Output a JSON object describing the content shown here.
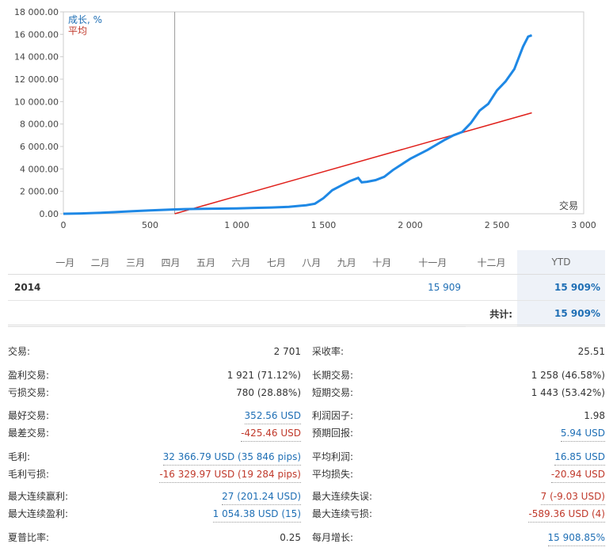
{
  "chart_data": {
    "type": "line",
    "xlabel": "交易",
    "xlim": [
      0,
      3000
    ],
    "ylim": [
      0,
      18000
    ],
    "xticks": [
      "0",
      "500",
      "1 000",
      "1 500",
      "2 000",
      "2 500",
      "3 000"
    ],
    "yticks": [
      "0.00",
      "2 000.00",
      "4 000.00",
      "6 000.00",
      "8 000.00",
      "10 000.00",
      "12 000.00",
      "14 000.00",
      "16 000.00",
      "18 000.00"
    ],
    "vline_x": 642,
    "legend": "top-left",
    "series": [
      {
        "name": "成长, %",
        "color": "#1e88e5",
        "x": [
          0,
          100,
          200,
          300,
          400,
          500,
          600,
          642,
          700,
          800,
          900,
          1000,
          1100,
          1200,
          1300,
          1400,
          1450,
          1500,
          1550,
          1600,
          1650,
          1700,
          1720,
          1750,
          1800,
          1850,
          1900,
          2000,
          2100,
          2200,
          2250,
          2300,
          2350,
          2400,
          2450,
          2500,
          2550,
          2600,
          2650,
          2680,
          2701
        ],
        "y": [
          0,
          30,
          80,
          150,
          230,
          300,
          360,
          390,
          420,
          440,
          460,
          480,
          520,
          560,
          620,
          760,
          900,
          1400,
          2100,
          2500,
          2900,
          3200,
          2800,
          2850,
          3000,
          3300,
          3900,
          4900,
          5700,
          6600,
          7000,
          7300,
          8100,
          9200,
          9800,
          11000,
          11800,
          12900,
          14900,
          15800,
          15909
        ]
      },
      {
        "name": "平均",
        "color": "#e0201b",
        "x": [
          642,
          2701
        ],
        "y": [
          0,
          9000
        ]
      }
    ]
  },
  "monthly": {
    "months": [
      "一月",
      "二月",
      "三月",
      "四月",
      "五月",
      "六月",
      "七月",
      "八月",
      "九月",
      "十月",
      "十一月",
      "十二月"
    ],
    "ytd_label": "YTD",
    "year": "2014",
    "values": [
      "",
      "",
      "",
      "",
      "",
      "",
      "",
      "",
      "",
      "",
      "15 909",
      ""
    ],
    "ytd": "15 909%",
    "total_label": "共计:",
    "total": "15 909%"
  },
  "stats": {
    "left": [
      {
        "k": "交易:",
        "v": "2 701",
        "c": ""
      },
      {
        "k": "盈利交易:",
        "v": "1 921 (71.12%)",
        "c": ""
      },
      {
        "k": "亏损交易:",
        "v": "780 (28.88%)",
        "c": ""
      },
      {
        "k": "最好交易:",
        "v": "352.56 USD",
        "c": "blue"
      },
      {
        "k": "最差交易:",
        "v": "-425.46 USD",
        "c": "red"
      },
      {
        "k": "毛利:",
        "v": "32 366.79 USD (35 846 pips)",
        "c": "blue"
      },
      {
        "k": "毛利亏损:",
        "v": "-16 329.97 USD (19 284 pips)",
        "c": "red"
      },
      {
        "k": "最大连续赢利:",
        "v": "27 (201.24 USD)",
        "c": "blue"
      },
      {
        "k": "最大连续盈利:",
        "v": "1 054.38 USD (15)",
        "c": "blue"
      },
      {
        "k": "夏普比率:",
        "v": "0.25",
        "c": ""
      }
    ],
    "right": [
      {
        "k": "采收率:",
        "v": "25.51",
        "c": ""
      },
      {
        "k": "长期交易:",
        "v": "1 258 (46.58%)",
        "c": ""
      },
      {
        "k": "短期交易:",
        "v": "1 443 (53.42%)",
        "c": ""
      },
      {
        "k": "利润因子:",
        "v": "1.98",
        "c": ""
      },
      {
        "k": "预期回报:",
        "v": "5.94 USD",
        "c": "blue"
      },
      {
        "k": "平均利润:",
        "v": "16.85 USD",
        "c": "blue"
      },
      {
        "k": "平均损失:",
        "v": "-20.94 USD",
        "c": "red"
      },
      {
        "k": "最大连续失误:",
        "v": "7 (-9.03 USD)",
        "c": "red"
      },
      {
        "k": "最大连续亏损:",
        "v": "-589.36 USD (4)",
        "c": "red"
      },
      {
        "k": "每月增长:",
        "v": "15 908.85%",
        "c": "blue"
      }
    ]
  }
}
